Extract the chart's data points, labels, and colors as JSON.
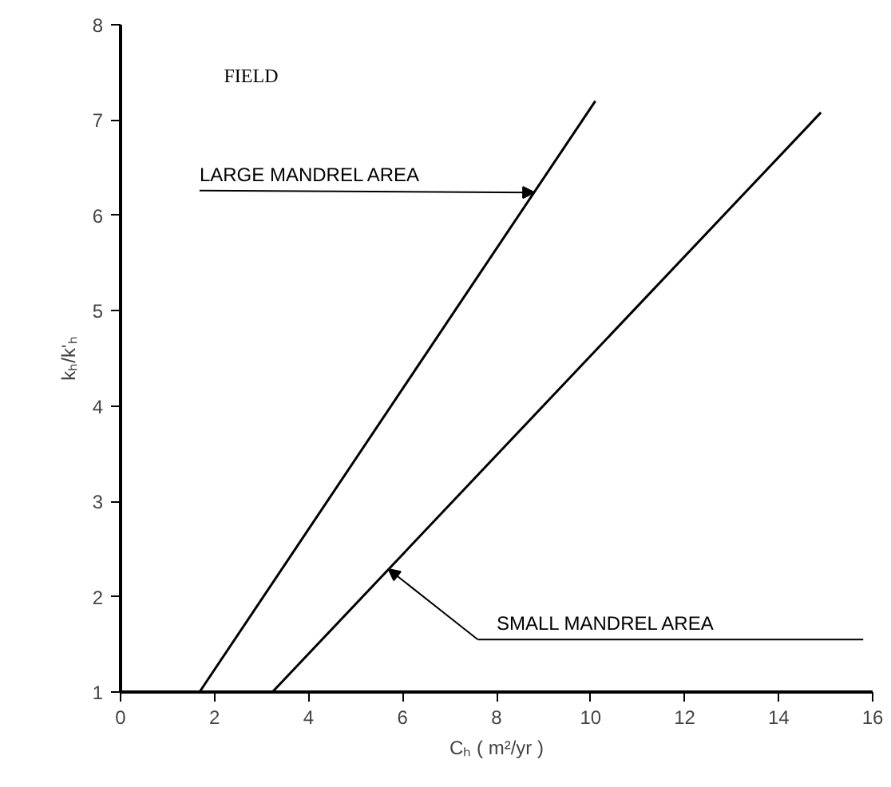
{
  "chart_data": {
    "type": "line",
    "xlabel": "Cₕ ( m²/yr )",
    "ylabel": "kₕ/k'ₕ",
    "xlim": [
      0,
      16
    ],
    "xticks": [
      0,
      2,
      4,
      6,
      8,
      10,
      12,
      14,
      16
    ],
    "ylim": [
      1,
      8
    ],
    "yticks": [
      1,
      2,
      3,
      4,
      5,
      6,
      7,
      8
    ],
    "series": [
      {
        "color": "#000000",
        "x": [
          1.68,
          10.1
        ],
        "values": [
          1,
          7.2
        ]
      },
      {
        "color": "#000000",
        "x": [
          3.23,
          14.9
        ],
        "values": [
          1,
          7.08
        ]
      }
    ],
    "annotations": [
      "FIELD",
      {
        "text": "LARGE MANDREL AREA",
        "x": 8.8,
        "y": 6.24
      },
      {
        "text": "SMALL MANDREL AREA",
        "x": 5.7,
        "y": 2.29
      }
    ],
    "grid": false,
    "marker": "none",
    "line_style": "solid"
  }
}
